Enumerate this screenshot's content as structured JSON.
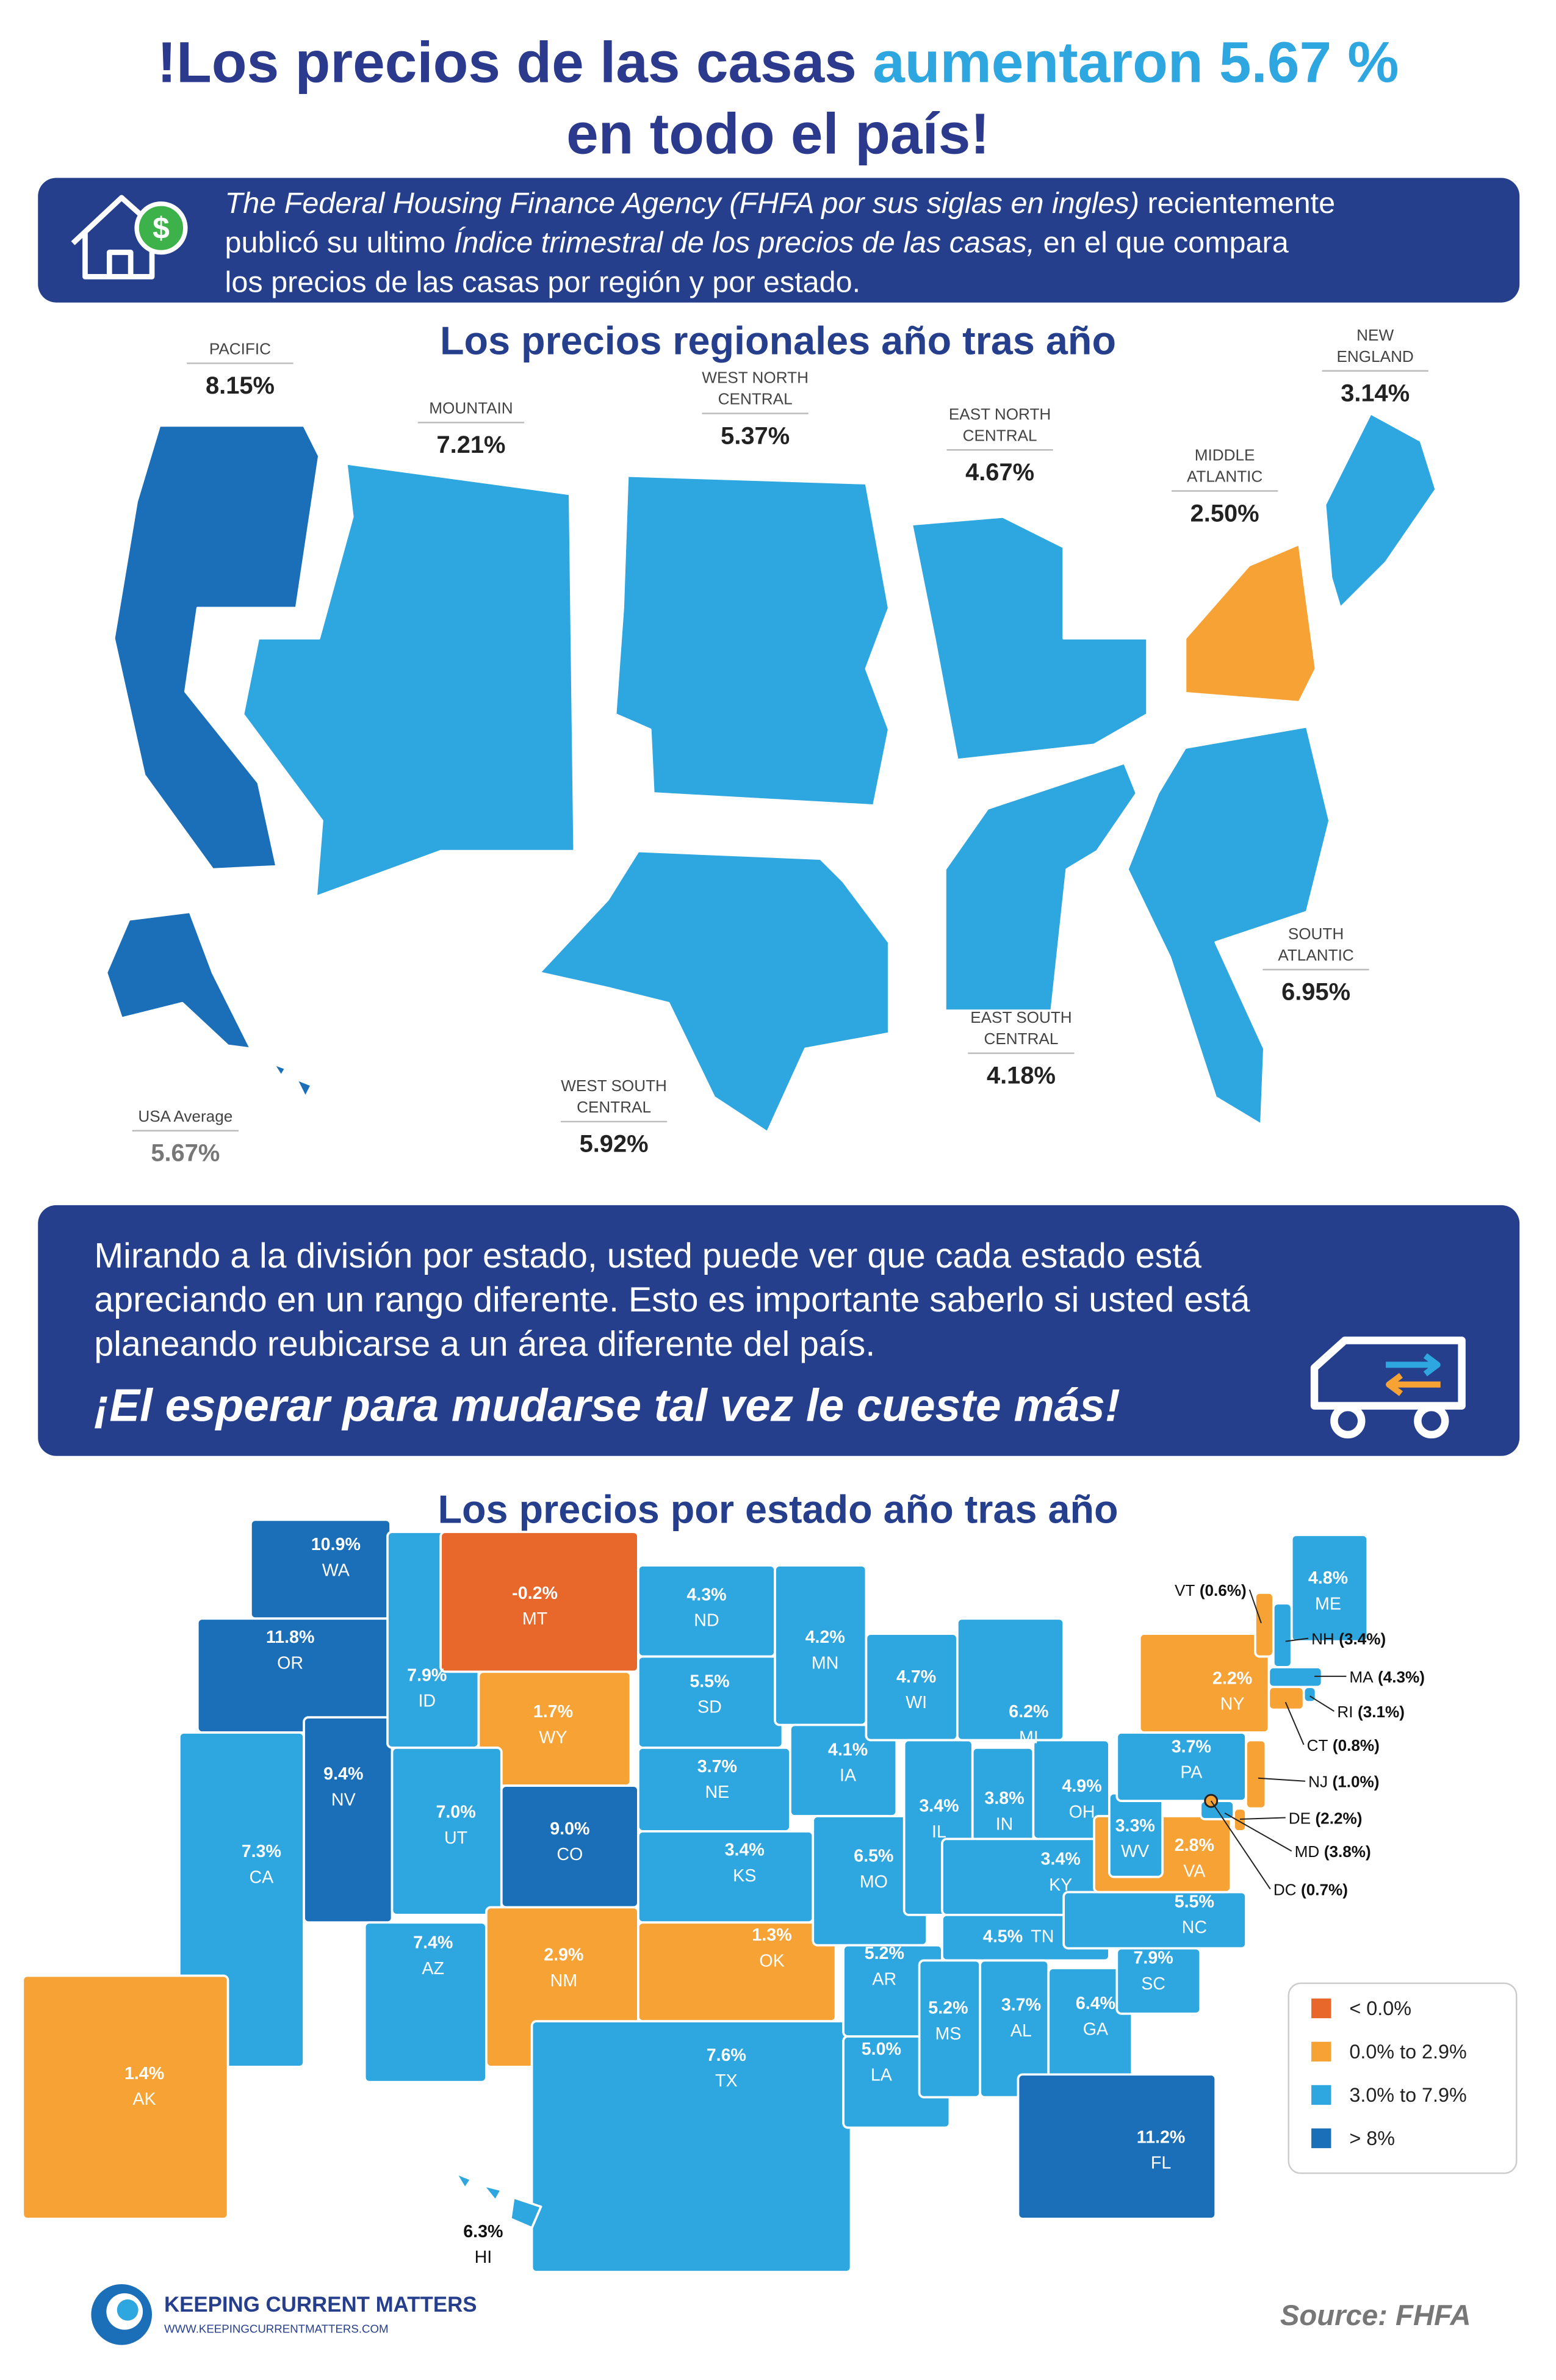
{
  "header": {
    "title_part1": "!Los precios de las casas ",
    "title_highlight": "aumentaron 5.67 %",
    "title_line2": "en todo el país!"
  },
  "intro": {
    "lines": [
      [
        {
          "text": "The Federal Housing Finance Agency (FHFA por sus siglas en ingles)",
          "italic": true
        },
        {
          "text": " recientemente",
          "italic": false
        }
      ],
      [
        {
          "text": "publicó su ultimo ",
          "italic": false
        },
        {
          "text": "Índice trimestral de los precios de las casas,",
          "italic": true
        },
        {
          "text": " en el que compara",
          "italic": false
        }
      ],
      [
        {
          "text": "los precios de las casas por región y por estado.",
          "italic": false
        }
      ]
    ]
  },
  "regional": {
    "title": "Los precios regionales año tras año",
    "regions": [
      {
        "name_lines": [
          "PACIFIC"
        ],
        "value": "8.15%",
        "color": "#1a6fb8"
      },
      {
        "name_lines": [
          "MOUNTAIN"
        ],
        "value": "7.21%",
        "color": "#2ea6df"
      },
      {
        "name_lines": [
          "WEST NORTH",
          "CENTRAL"
        ],
        "value": "5.37%",
        "color": "#2ea6df"
      },
      {
        "name_lines": [
          "EAST NORTH",
          "CENTRAL"
        ],
        "value": "4.67%",
        "color": "#2ea6df"
      },
      {
        "name_lines": [
          "MIDDLE",
          "ATLANTIC"
        ],
        "value": "2.50%",
        "color": "#f7a234"
      },
      {
        "name_lines": [
          "NEW",
          "ENGLAND"
        ],
        "value": "3.14%",
        "color": "#2ea6df"
      },
      {
        "name_lines": [
          "SOUTH",
          "ATLANTIC"
        ],
        "value": "6.95%",
        "color": "#2ea6df"
      },
      {
        "name_lines": [
          "EAST SOUTH",
          "CENTRAL"
        ],
        "value": "4.18%",
        "color": "#2ea6df"
      },
      {
        "name_lines": [
          "WEST SOUTH",
          "CENTRAL"
        ],
        "value": "5.92%",
        "color": "#2ea6df"
      }
    ],
    "average": {
      "name": "USA Average",
      "value": "5.67%"
    }
  },
  "note": {
    "lines": [
      "Mirando a la división por estado, usted puede ver que cada estado está",
      "apreciando en un rango diferente. Esto es importante saberlo si usted está",
      "planeando reubicarse a un área diferente del país."
    ],
    "emphasis": "¡El esperar para mudarse tal vez le cueste más!"
  },
  "states": {
    "title": "Los precios por estado año tras año",
    "items": [
      {
        "abbr": "WA",
        "value": "10.9%",
        "color": "#1a6fb8"
      },
      {
        "abbr": "OR",
        "value": "11.8%",
        "color": "#1a6fb8"
      },
      {
        "abbr": "CA",
        "value": "7.3%",
        "color": "#2ea6df"
      },
      {
        "abbr": "NV",
        "value": "9.4%",
        "color": "#1a6fb8"
      },
      {
        "abbr": "ID",
        "value": "7.9%",
        "color": "#2ea6df"
      },
      {
        "abbr": "MT",
        "value": "-0.2%",
        "color": "#e8672a"
      },
      {
        "abbr": "WY",
        "value": "1.7%",
        "color": "#f7a234"
      },
      {
        "abbr": "UT",
        "value": "7.0%",
        "color": "#2ea6df"
      },
      {
        "abbr": "CO",
        "value": "9.0%",
        "color": "#1a6fb8"
      },
      {
        "abbr": "AZ",
        "value": "7.4%",
        "color": "#2ea6df"
      },
      {
        "abbr": "NM",
        "value": "2.9%",
        "color": "#f7a234"
      },
      {
        "abbr": "ND",
        "value": "4.3%",
        "color": "#2ea6df"
      },
      {
        "abbr": "SD",
        "value": "5.5%",
        "color": "#2ea6df"
      },
      {
        "abbr": "NE",
        "value": "3.7%",
        "color": "#2ea6df"
      },
      {
        "abbr": "KS",
        "value": "3.4%",
        "color": "#2ea6df"
      },
      {
        "abbr": "OK",
        "value": "1.3%",
        "color": "#f7a234"
      },
      {
        "abbr": "TX",
        "value": "7.6%",
        "color": "#2ea6df"
      },
      {
        "abbr": "MN",
        "value": "4.2%",
        "color": "#2ea6df"
      },
      {
        "abbr": "IA",
        "value": "4.1%",
        "color": "#2ea6df"
      },
      {
        "abbr": "MO",
        "value": "6.5%",
        "color": "#2ea6df"
      },
      {
        "abbr": "AR",
        "value": "5.2%",
        "color": "#2ea6df"
      },
      {
        "abbr": "LA",
        "value": "5.0%",
        "color": "#2ea6df"
      },
      {
        "abbr": "WI",
        "value": "4.7%",
        "color": "#2ea6df"
      },
      {
        "abbr": "IL",
        "value": "3.4%",
        "color": "#2ea6df"
      },
      {
        "abbr": "MI",
        "value": "6.2%",
        "color": "#2ea6df"
      },
      {
        "abbr": "IN",
        "value": "3.8%",
        "color": "#2ea6df"
      },
      {
        "abbr": "OH",
        "value": "4.9%",
        "color": "#2ea6df"
      },
      {
        "abbr": "KY",
        "value": "3.4%",
        "color": "#2ea6df"
      },
      {
        "abbr": "TN",
        "value": "4.5%",
        "color": "#2ea6df"
      },
      {
        "abbr": "MS",
        "value": "5.2%",
        "color": "#2ea6df"
      },
      {
        "abbr": "AL",
        "value": "3.7%",
        "color": "#2ea6df"
      },
      {
        "abbr": "GA",
        "value": "6.4%",
        "color": "#2ea6df"
      },
      {
        "abbr": "SC",
        "value": "7.9%",
        "color": "#2ea6df"
      },
      {
        "abbr": "NC",
        "value": "5.5%",
        "color": "#2ea6df"
      },
      {
        "abbr": "VA",
        "value": "2.8%",
        "color": "#f7a234"
      },
      {
        "abbr": "WV",
        "value": "3.3%",
        "color": "#2ea6df"
      },
      {
        "abbr": "PA",
        "value": "3.7%",
        "color": "#2ea6df"
      },
      {
        "abbr": "NY",
        "value": "2.2%",
        "color": "#f7a234"
      },
      {
        "abbr": "ME",
        "value": "4.8%",
        "color": "#2ea6df"
      },
      {
        "abbr": "AK",
        "value": "1.4%",
        "color": "#f7a234"
      },
      {
        "abbr": "HI",
        "value": "6.3%",
        "color": "#2ea6df"
      },
      {
        "abbr": "FL",
        "value": "11.2%",
        "color": "#1a6fb8"
      },
      {
        "abbr": "VT",
        "value": "(0.6%)",
        "color": "#f7a234"
      },
      {
        "abbr": "NH",
        "value": "(3.4%)",
        "color": "#2ea6df"
      },
      {
        "abbr": "MA",
        "value": "(4.3%)",
        "color": "#2ea6df"
      },
      {
        "abbr": "RI",
        "value": "(3.1%)",
        "color": "#2ea6df"
      },
      {
        "abbr": "CT",
        "value": "(0.8%)",
        "color": "#f7a234"
      },
      {
        "abbr": "NJ",
        "value": "(1.0%)",
        "color": "#f7a234"
      },
      {
        "abbr": "DE",
        "value": "(2.2%)",
        "color": "#f7a234"
      },
      {
        "abbr": "MD",
        "value": "(3.8%)",
        "color": "#2ea6df"
      },
      {
        "abbr": "DC",
        "value": "(0.7%)",
        "color": "#f7a234"
      }
    ]
  },
  "legend": [
    {
      "label": "< 0.0%",
      "color": "#e8672a"
    },
    {
      "label": "0.0% to 2.9%",
      "color": "#f7a234"
    },
    {
      "label": "3.0% to 7.9%",
      "color": "#2ea6df"
    },
    {
      "label": "> 8%",
      "color": "#1a6fb8"
    }
  ],
  "footer": {
    "brand": "KEEPING CURRENT MATTERS",
    "url": "WWW.KEEPINGCURRENTMATTERS.COM",
    "source": "Source: FHFA"
  }
}
